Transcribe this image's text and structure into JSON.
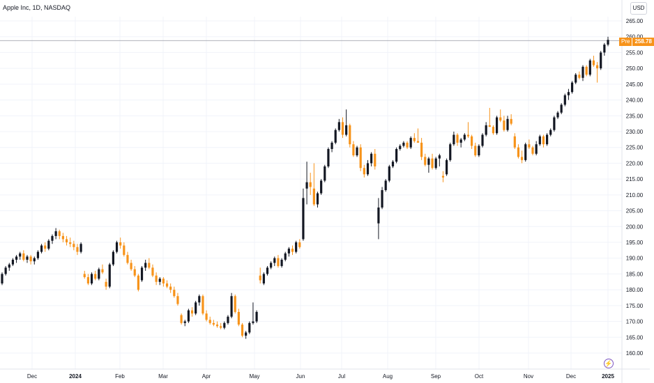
{
  "header": {
    "symbol_title": "Apple Inc, 1D, NASDAQ"
  },
  "currency": "USD",
  "price_badge": {
    "pre_label": "Pre",
    "price": "258.78"
  },
  "icons": {
    "goto_realtime": "lightning-icon"
  },
  "colors": {
    "up": "#131722",
    "down": "#f7931a",
    "grid": "#f0f3fa",
    "axis_text": "#131722",
    "badge": "#f7931a"
  },
  "chart_data": {
    "type": "candlestick",
    "title": "Apple Inc, 1D, NASDAQ",
    "currency": "USD",
    "last_price": 258.78,
    "ylim": [
      157,
      267
    ],
    "y_ticks": [
      "160.00",
      "165.00",
      "170.00",
      "175.00",
      "180.00",
      "185.00",
      "190.00",
      "195.00",
      "200.00",
      "205.00",
      "210.00",
      "215.00",
      "220.00",
      "225.00",
      "230.00",
      "235.00",
      "240.00",
      "245.00",
      "250.00",
      "255.00",
      "260.00",
      "265.00"
    ],
    "x_ticks": [
      "Dec",
      "2024",
      "Feb",
      "Mar",
      "Apr",
      "May",
      "Jun",
      "Jul",
      "Aug",
      "Sep",
      "Oct",
      "Nov",
      "Dec",
      "2025"
    ],
    "grid": true,
    "series": [
      {
        "values": [
          [
            182.0,
            185.5,
            181.5,
            185.0
          ],
          [
            185.0,
            187.5,
            184.5,
            187.0
          ],
          [
            187.0,
            188.5,
            186.0,
            188.0
          ],
          [
            188.0,
            190.0,
            187.5,
            189.5
          ],
          [
            189.5,
            191.0,
            188.5,
            190.5
          ],
          [
            190.5,
            192.0,
            189.5,
            191.5
          ],
          [
            191.5,
            192.5,
            189.0,
            189.5
          ],
          [
            189.5,
            191.0,
            188.5,
            190.5
          ],
          [
            190.5,
            191.0,
            188.0,
            189.0
          ],
          [
            189.0,
            190.5,
            188.0,
            190.0
          ],
          [
            190.0,
            192.5,
            189.5,
            192.0
          ],
          [
            192.0,
            194.5,
            191.5,
            194.0
          ],
          [
            194.0,
            195.0,
            192.0,
            193.0
          ],
          [
            193.0,
            196.0,
            192.5,
            195.5
          ],
          [
            195.5,
            197.5,
            194.5,
            197.0
          ],
          [
            197.0,
            199.5,
            196.0,
            198.5
          ],
          [
            198.5,
            199.0,
            196.0,
            197.0
          ],
          [
            197.0,
            198.0,
            195.0,
            196.0
          ],
          [
            196.0,
            197.0,
            194.0,
            195.0
          ],
          [
            195.0,
            196.5,
            193.5,
            194.5
          ],
          [
            194.5,
            195.5,
            192.5,
            193.5
          ],
          [
            193.5,
            194.5,
            191.0,
            192.0
          ],
          [
            192.0,
            195.0,
            191.5,
            194.5
          ],
          [
            185.0,
            186.0,
            183.5,
            184.0
          ],
          [
            184.0,
            185.0,
            181.5,
            182.0
          ],
          [
            182.0,
            185.5,
            181.5,
            185.0
          ],
          [
            185.0,
            186.0,
            183.0,
            183.5
          ],
          [
            183.5,
            187.0,
            183.0,
            186.5
          ],
          [
            186.5,
            188.0,
            185.0,
            185.5
          ],
          [
            182.5,
            183.5,
            180.0,
            181.0
          ],
          [
            181.0,
            188.5,
            180.5,
            188.0
          ],
          [
            188.0,
            192.5,
            187.5,
            192.0
          ],
          [
            192.0,
            195.5,
            191.5,
            195.0
          ],
          [
            195.0,
            196.5,
            193.0,
            194.0
          ],
          [
            194.0,
            195.0,
            190.5,
            191.0
          ],
          [
            191.0,
            192.0,
            188.0,
            188.5
          ],
          [
            188.5,
            189.5,
            186.0,
            186.5
          ],
          [
            186.5,
            187.5,
            184.0,
            184.5
          ],
          [
            184.5,
            185.0,
            179.5,
            180.0
          ],
          [
            183.0,
            187.5,
            182.5,
            187.0
          ],
          [
            187.0,
            189.5,
            186.0,
            188.5
          ],
          [
            188.5,
            190.0,
            186.5,
            187.0
          ],
          [
            187.0,
            188.0,
            184.0,
            184.5
          ],
          [
            184.5,
            185.5,
            181.5,
            182.5
          ],
          [
            182.5,
            184.0,
            181.5,
            183.5
          ],
          [
            183.5,
            184.0,
            181.0,
            182.0
          ],
          [
            182.0,
            183.0,
            180.5,
            181.0
          ],
          [
            181.0,
            182.0,
            179.0,
            180.0
          ],
          [
            180.0,
            181.0,
            177.5,
            178.0
          ],
          [
            178.0,
            179.0,
            175.0,
            175.5
          ],
          [
            172.0,
            172.5,
            169.0,
            169.5
          ],
          [
            169.5,
            170.5,
            168.5,
            170.0
          ],
          [
            170.0,
            174.0,
            169.5,
            173.5
          ],
          [
            173.5,
            174.5,
            171.5,
            172.5
          ],
          [
            172.5,
            176.5,
            172.0,
            176.0
          ],
          [
            176.0,
            178.5,
            175.0,
            178.0
          ],
          [
            178.0,
            178.5,
            172.0,
            172.5
          ],
          [
            172.5,
            173.5,
            170.0,
            170.5
          ],
          [
            170.5,
            171.5,
            169.0,
            169.5
          ],
          [
            169.5,
            170.5,
            168.5,
            169.0
          ],
          [
            169.0,
            170.0,
            168.0,
            168.5
          ],
          [
            168.5,
            169.5,
            167.5,
            168.0
          ],
          [
            168.0,
            170.0,
            167.5,
            169.5
          ],
          [
            169.5,
            172.0,
            169.0,
            171.5
          ],
          [
            171.5,
            179.0,
            171.0,
            178.0
          ],
          [
            178.0,
            178.5,
            172.5,
            173.0
          ],
          [
            173.0,
            174.0,
            168.5,
            169.0
          ],
          [
            169.0,
            169.5,
            165.0,
            165.5
          ],
          [
            165.5,
            167.0,
            164.5,
            166.5
          ],
          [
            166.5,
            170.0,
            166.0,
            169.5
          ],
          [
            169.5,
            176.0,
            169.0,
            170.0
          ],
          [
            170.0,
            173.5,
            169.5,
            173.0
          ],
          [
            184.5,
            187.0,
            182.0,
            183.0
          ],
          [
            182.0,
            185.5,
            181.5,
            185.0
          ],
          [
            185.0,
            187.5,
            184.5,
            187.0
          ],
          [
            187.0,
            189.0,
            186.5,
            188.5
          ],
          [
            188.5,
            190.5,
            187.5,
            190.0
          ],
          [
            190.0,
            191.0,
            187.0,
            187.5
          ],
          [
            187.5,
            190.0,
            187.0,
            189.5
          ],
          [
            189.5,
            192.0,
            189.0,
            191.5
          ],
          [
            191.5,
            193.5,
            190.5,
            193.0
          ],
          [
            193.0,
            194.0,
            191.0,
            192.0
          ],
          [
            192.0,
            195.5,
            191.5,
            195.0
          ],
          [
            195.0,
            196.0,
            193.0,
            193.5
          ],
          [
            196.0,
            212.0,
            195.5,
            209.0
          ],
          [
            212.0,
            220.5,
            207.0,
            214.0
          ],
          [
            214.0,
            217.0,
            210.0,
            212.5
          ],
          [
            212.0,
            220.0,
            206.5,
            207.0
          ],
          [
            207.0,
            211.0,
            206.0,
            210.5
          ],
          [
            210.5,
            215.0,
            210.0,
            214.5
          ],
          [
            214.5,
            219.5,
            214.0,
            219.0
          ],
          [
            219.0,
            225.0,
            218.5,
            224.5
          ],
          [
            224.5,
            227.0,
            223.5,
            226.5
          ],
          [
            226.5,
            231.0,
            226.0,
            230.5
          ],
          [
            230.5,
            234.0,
            230.0,
            233.0
          ],
          [
            233.0,
            234.5,
            228.0,
            229.0
          ],
          [
            229.0,
            237.0,
            228.5,
            232.0
          ],
          [
            232.0,
            232.5,
            225.0,
            226.0
          ],
          [
            226.0,
            227.0,
            222.0,
            222.5
          ],
          [
            222.5,
            225.5,
            222.0,
            225.0
          ],
          [
            225.0,
            226.0,
            217.5,
            218.5
          ],
          [
            218.5,
            219.5,
            215.5,
            216.5
          ],
          [
            216.5,
            221.0,
            216.0,
            220.0
          ],
          [
            220.0,
            223.5,
            219.0,
            223.0
          ],
          [
            223.0,
            224.5,
            218.0,
            219.0
          ],
          [
            201.0,
            209.0,
            196.0,
            206.0
          ],
          [
            206.0,
            212.5,
            205.5,
            211.5
          ],
          [
            211.5,
            215.0,
            211.0,
            214.5
          ],
          [
            214.5,
            219.5,
            214.0,
            219.0
          ],
          [
            219.0,
            221.0,
            218.5,
            220.5
          ],
          [
            220.5,
            225.0,
            220.0,
            224.5
          ],
          [
            224.5,
            226.0,
            224.0,
            225.5
          ],
          [
            225.5,
            227.0,
            225.0,
            226.5
          ],
          [
            226.5,
            227.0,
            224.5,
            225.0
          ],
          [
            225.0,
            228.5,
            224.5,
            228.0
          ],
          [
            228.0,
            229.5,
            226.5,
            227.0
          ],
          [
            227.0,
            231.0,
            226.5,
            226.5
          ],
          [
            226.5,
            228.0,
            221.0,
            222.0
          ],
          [
            222.0,
            223.0,
            219.0,
            219.5
          ],
          [
            219.5,
            222.0,
            217.0,
            221.5
          ],
          [
            221.5,
            223.0,
            218.0,
            218.5
          ],
          [
            218.5,
            222.0,
            218.0,
            221.5
          ],
          [
            221.5,
            223.0,
            219.0,
            222.5
          ],
          [
            216.0,
            217.5,
            214.0,
            215.5
          ],
          [
            216.5,
            221.5,
            216.0,
            221.0
          ],
          [
            221.0,
            226.5,
            220.5,
            226.0
          ],
          [
            226.0,
            230.0,
            225.5,
            229.0
          ],
          [
            229.0,
            229.5,
            225.5,
            226.5
          ],
          [
            226.5,
            228.0,
            225.0,
            227.5
          ],
          [
            227.5,
            229.5,
            227.0,
            229.0
          ],
          [
            229.0,
            233.0,
            228.0,
            228.5
          ],
          [
            228.5,
            229.0,
            224.5,
            225.5
          ],
          [
            225.5,
            226.5,
            222.0,
            222.5
          ],
          [
            222.5,
            226.0,
            222.0,
            225.5
          ],
          [
            225.5,
            229.5,
            225.0,
            229.0
          ],
          [
            229.0,
            233.0,
            228.5,
            232.0
          ],
          [
            232.0,
            237.5,
            231.5,
            231.5
          ],
          [
            231.5,
            232.0,
            229.0,
            229.5
          ],
          [
            229.5,
            235.0,
            229.0,
            234.5
          ],
          [
            234.5,
            237.0,
            233.0,
            233.5
          ],
          [
            233.5,
            235.0,
            230.0,
            230.5
          ],
          [
            230.5,
            235.0,
            230.0,
            234.0
          ],
          [
            234.0,
            235.5,
            232.0,
            232.5
          ],
          [
            228.5,
            229.5,
            224.5,
            225.0
          ],
          [
            225.0,
            226.0,
            221.5,
            222.0
          ],
          [
            222.0,
            224.0,
            220.0,
            221.0
          ],
          [
            221.0,
            226.5,
            220.5,
            226.0
          ],
          [
            226.0,
            227.5,
            224.5,
            225.0
          ],
          [
            225.0,
            225.5,
            222.5,
            223.0
          ],
          [
            223.0,
            227.0,
            222.5,
            226.0
          ],
          [
            226.0,
            229.0,
            225.5,
            228.5
          ],
          [
            228.5,
            229.0,
            225.0,
            226.0
          ],
          [
            226.0,
            229.5,
            225.5,
            229.0
          ],
          [
            229.0,
            231.0,
            228.5,
            230.5
          ],
          [
            230.5,
            235.0,
            230.0,
            234.5
          ],
          [
            234.5,
            236.5,
            234.0,
            236.0
          ],
          [
            236.0,
            239.0,
            235.5,
            238.5
          ],
          [
            238.5,
            242.0,
            238.0,
            241.5
          ],
          [
            241.5,
            243.5,
            240.0,
            242.5
          ],
          [
            242.5,
            246.0,
            242.0,
            245.5
          ],
          [
            245.5,
            248.5,
            245.0,
            248.0
          ],
          [
            248.0,
            249.0,
            246.5,
            247.0
          ],
          [
            247.0,
            251.0,
            246.0,
            250.5
          ],
          [
            250.5,
            251.0,
            247.5,
            248.0
          ],
          [
            248.0,
            253.0,
            247.5,
            252.5
          ],
          [
            252.5,
            254.0,
            250.5,
            251.0
          ],
          [
            251.0,
            252.0,
            245.5,
            250.0
          ],
          [
            250.0,
            255.5,
            249.5,
            255.0
          ],
          [
            255.0,
            258.0,
            254.0,
            257.5
          ],
          [
            257.5,
            260.0,
            257.0,
            259.0
          ]
        ]
      }
    ]
  }
}
